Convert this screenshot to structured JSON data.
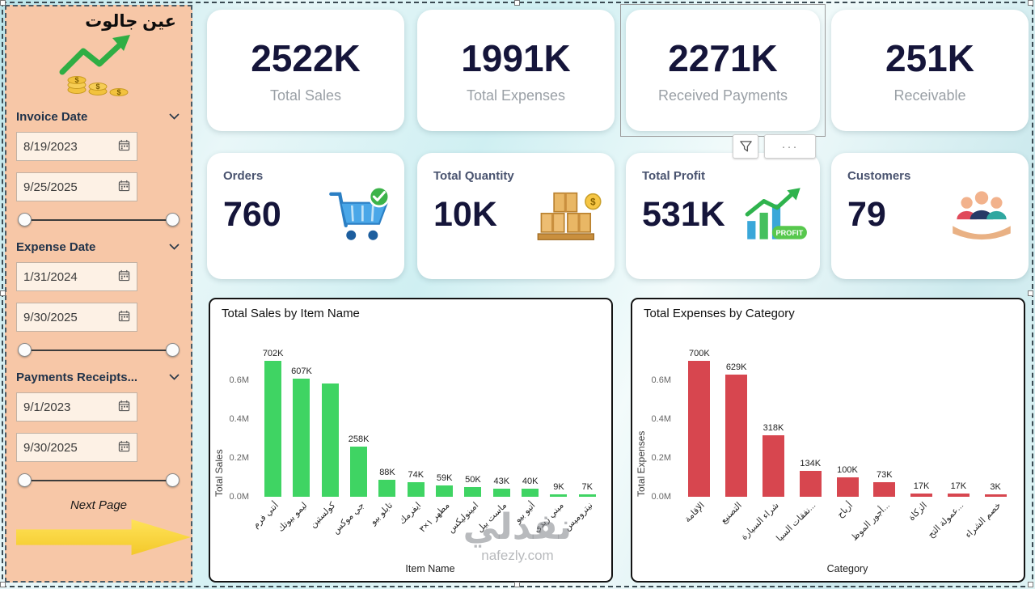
{
  "sidebar": {
    "title": "عين جالوت",
    "next_page_label": "Next Page",
    "sections": [
      {
        "label": "Invoice Date",
        "start": "8/19/2023",
        "end": "9/25/2025"
      },
      {
        "label": "Expense Date",
        "start": "1/31/2024",
        "end": "9/30/2025"
      },
      {
        "label": "Payments Receipts...",
        "start": "9/1/2023",
        "end": "9/30/2025"
      }
    ]
  },
  "kpis_row1": [
    {
      "value": "2522K",
      "label": "Total Sales"
    },
    {
      "value": "1991K",
      "label": "Total Expenses"
    },
    {
      "value": "2271K",
      "label": "Received Payments",
      "selected": true
    },
    {
      "value": "251K",
      "label": "Receivable"
    }
  ],
  "kpis_row2": [
    {
      "label": "Orders",
      "value": "760",
      "icon": "cart-icon"
    },
    {
      "label": "Total Quantity",
      "value": "10K",
      "icon": "boxes-icon"
    },
    {
      "label": "Total Profit",
      "value": "531K",
      "icon": "profit-chart-icon"
    },
    {
      "label": "Customers",
      "value": "79",
      "icon": "customers-icon"
    }
  ],
  "visual_header": {
    "more_dots": "···"
  },
  "profit_ribbon": "PROFIT",
  "watermark": {
    "text": "نفذلي",
    "site": "nafezly.com"
  },
  "colors": {
    "sidebar_bg": "#f7c7a7",
    "background_teal": "#d6eef1",
    "kpi_number": "#15153a",
    "kpi_label": "#9aa0a6",
    "sales_bar": "#3fd463",
    "expense_bar": "#d7464f",
    "arrow_yellow": "#f6cf35"
  },
  "chart_data": [
    {
      "type": "bar",
      "title": "Total Sales by Item Name",
      "xlabel": "Item Name",
      "ylabel": "Total Sales",
      "legend": false,
      "grid": false,
      "bar_color": "#3fd463",
      "ylim": [
        0,
        750
      ],
      "ytick_values": [
        0,
        200,
        400,
        600
      ],
      "ytick_labels": [
        "0.0M",
        "0.2M",
        "0.4M",
        "0.6M"
      ],
      "categories": [
        "أنتي فرم",
        "ليمو بيوتك",
        "كولستين",
        "جي موكس",
        "تابلو بيو",
        "ايفرمك",
        "مطهر ١×٣",
        "امينوليكس",
        "ماست بيل",
        "أتيو بيو",
        "مبني زيدي",
        "نيتروميس"
      ],
      "values": [
        702,
        607,
        585,
        258,
        88,
        74,
        59,
        50,
        43,
        40,
        9,
        7
      ],
      "labels": [
        "702K",
        "607K",
        "",
        "258K",
        "88K",
        "74K",
        "59K",
        "50K",
        "43K",
        "40K",
        "9K",
        "7K"
      ]
    },
    {
      "type": "bar",
      "title": "Total Expenses by Category",
      "xlabel": "Category",
      "ylabel": "Total Expenses",
      "legend": false,
      "grid": false,
      "bar_color": "#d7464f",
      "ylim": [
        0,
        750
      ],
      "ytick_values": [
        0,
        200,
        400,
        600
      ],
      "ytick_labels": [
        "0.0M",
        "0.2M",
        "0.4M",
        "0.6M"
      ],
      "categories": [
        "الإقامة",
        "التصنيع",
        "شراء السيارة",
        "نفقات السيا...",
        "أرباح",
        "أجور الموظ...",
        "الزكاة",
        "عمولة التح...",
        "خصم الشراء"
      ],
      "values": [
        700,
        629,
        318,
        134,
        100,
        73,
        17,
        17,
        3
      ],
      "labels": [
        "700K",
        "629K",
        "318K",
        "134K",
        "100K",
        "73K",
        "17K",
        "17K",
        "3K"
      ]
    }
  ]
}
